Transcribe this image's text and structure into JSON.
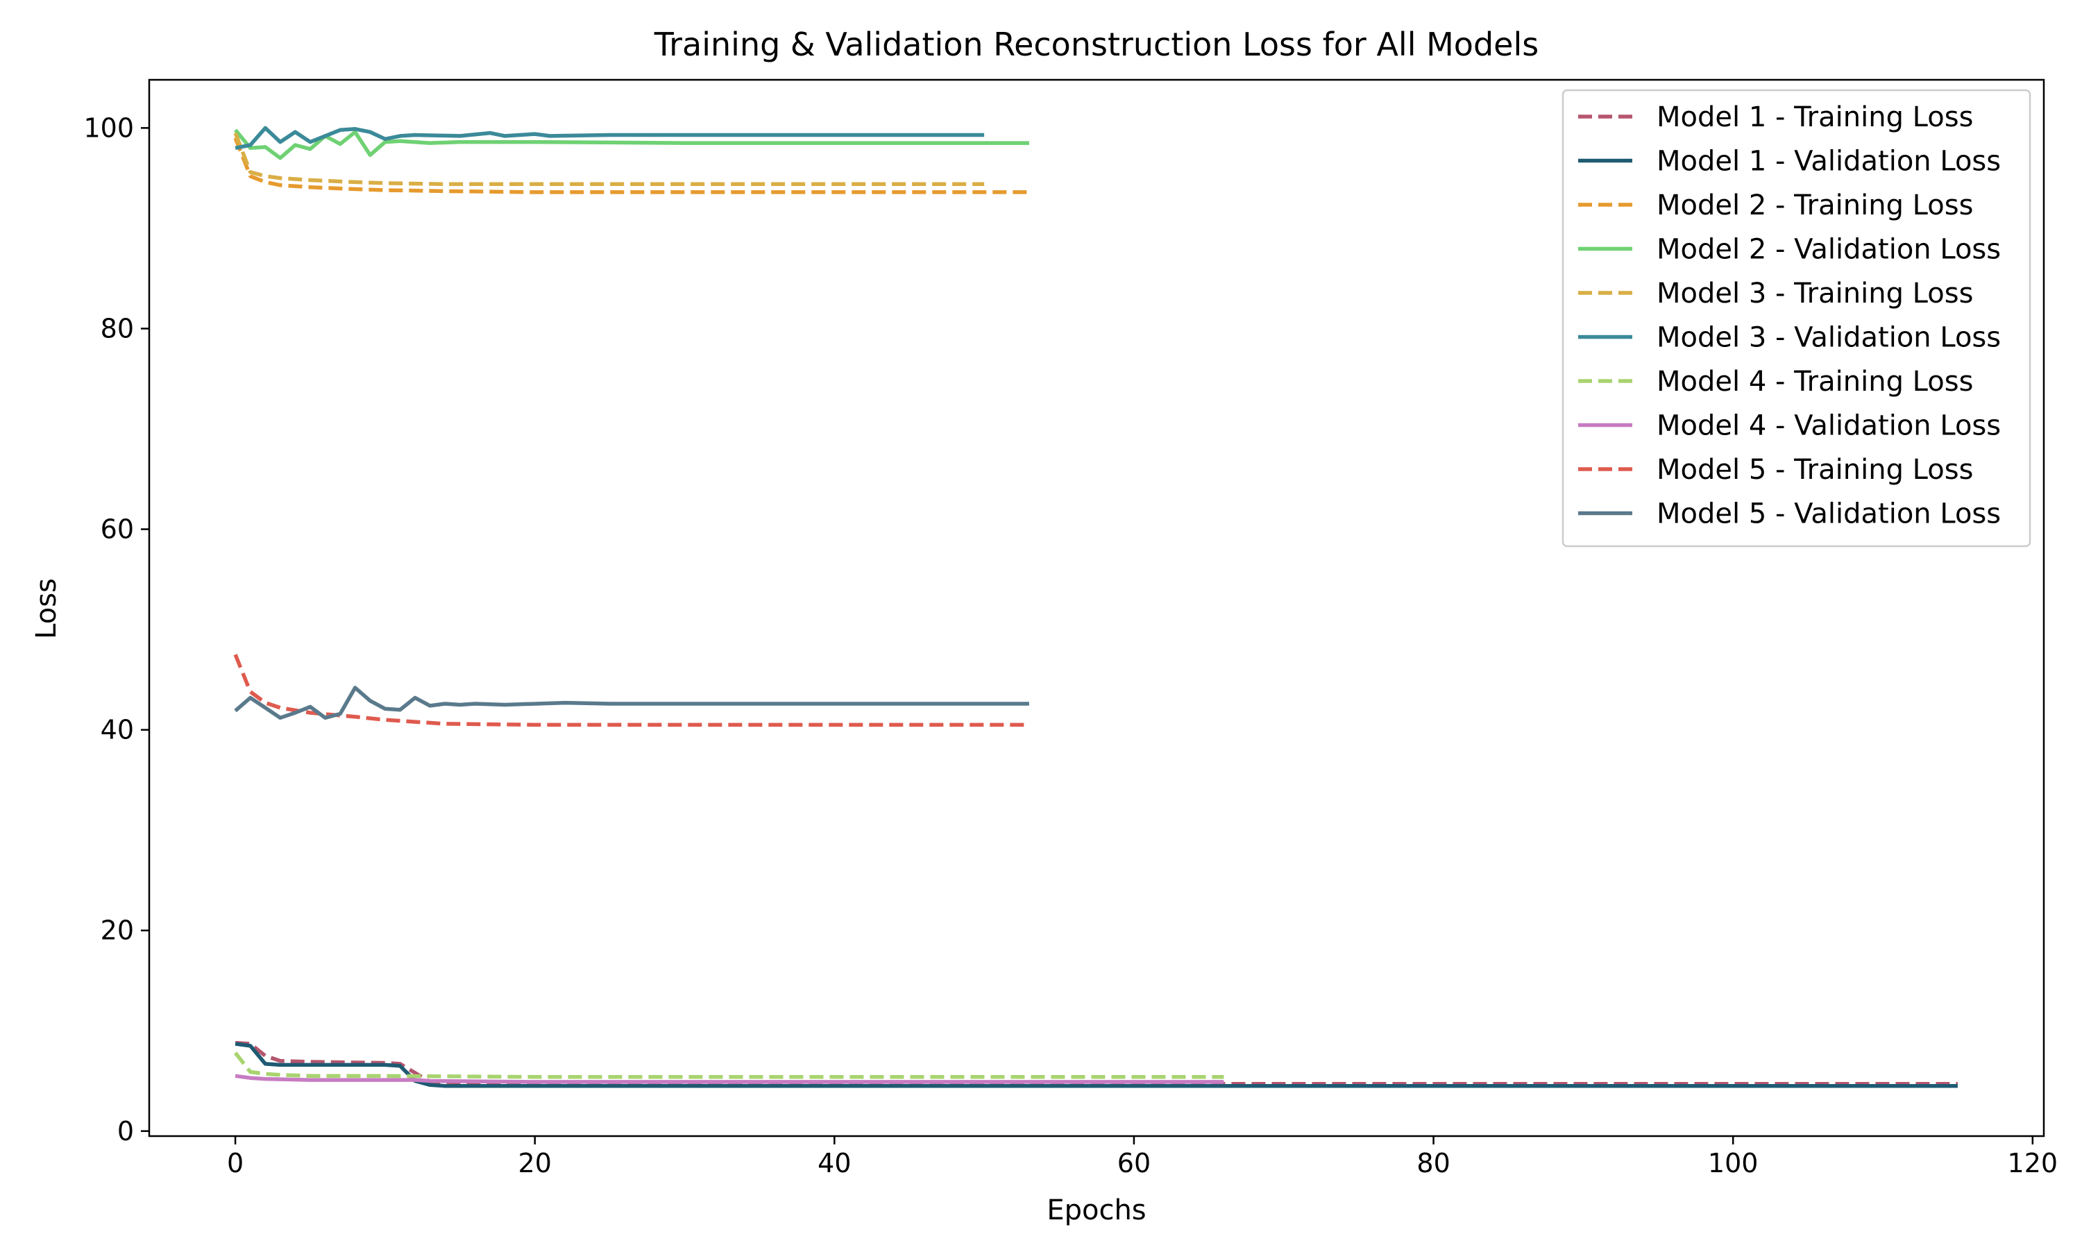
{
  "chart_data": {
    "type": "line",
    "title": "Training & Validation Reconstruction Loss for All Models",
    "xlabel": "Epochs",
    "ylabel": "Loss",
    "xlim": [
      -5.75,
      120.75
    ],
    "ylim": [
      -0.5,
      104.8
    ],
    "xticks": [
      0,
      20,
      40,
      60,
      80,
      100,
      120
    ],
    "yticks": [
      0,
      20,
      40,
      60,
      80,
      100
    ],
    "grid": false,
    "legend_position": "top-right",
    "series": [
      {
        "name": "Model 1 - Training Loss",
        "color": "#b5566e",
        "style": "dashed",
        "segments": [
          [
            0,
            8.8
          ],
          [
            1,
            8.7
          ],
          [
            2,
            7.5
          ],
          [
            3,
            7.0
          ],
          [
            5,
            6.9
          ],
          [
            10,
            6.8
          ],
          [
            11,
            6.7
          ],
          [
            12,
            5.8
          ],
          [
            13,
            4.9
          ],
          [
            20,
            4.8
          ],
          [
            60,
            4.7
          ],
          [
            115,
            4.7
          ]
        ]
      },
      {
        "name": "Model 1 - Validation Loss",
        "color": "#1f5a73",
        "style": "solid",
        "segments": [
          [
            0,
            8.7
          ],
          [
            1,
            8.5
          ],
          [
            2,
            6.7
          ],
          [
            3,
            6.6
          ],
          [
            10,
            6.6
          ],
          [
            11,
            6.5
          ],
          [
            12,
            5.0
          ],
          [
            13,
            4.6
          ],
          [
            14,
            4.5
          ],
          [
            20,
            4.5
          ],
          [
            115,
            4.5
          ]
        ]
      },
      {
        "name": "Model 2 - Training Loss",
        "color": "#e69a2e",
        "style": "dashed",
        "segments": [
          [
            0,
            99.0
          ],
          [
            1,
            95.2
          ],
          [
            2,
            94.6
          ],
          [
            3,
            94.3
          ],
          [
            5,
            94.1
          ],
          [
            8,
            93.9
          ],
          [
            10,
            93.8
          ],
          [
            14,
            93.7
          ],
          [
            20,
            93.6
          ],
          [
            53,
            93.6
          ]
        ]
      },
      {
        "name": "Model 2 - Validation Loss",
        "color": "#6fd173",
        "style": "solid",
        "segments": [
          [
            0,
            99.8
          ],
          [
            1,
            98.0
          ],
          [
            2,
            98.1
          ],
          [
            3,
            97.0
          ],
          [
            4,
            98.3
          ],
          [
            5,
            97.9
          ],
          [
            6,
            99.2
          ],
          [
            7,
            98.4
          ],
          [
            8,
            99.6
          ],
          [
            9,
            97.3
          ],
          [
            10,
            98.6
          ],
          [
            11,
            98.7
          ],
          [
            13,
            98.5
          ],
          [
            15,
            98.6
          ],
          [
            20,
            98.6
          ],
          [
            30,
            98.5
          ],
          [
            53,
            98.5
          ]
        ]
      },
      {
        "name": "Model 3 - Training Loss",
        "color": "#d9ae45",
        "style": "dashed",
        "segments": [
          [
            0,
            99.5
          ],
          [
            1,
            95.6
          ],
          [
            2,
            95.2
          ],
          [
            3,
            95.0
          ],
          [
            5,
            94.8
          ],
          [
            8,
            94.6
          ],
          [
            10,
            94.5
          ],
          [
            14,
            94.4
          ],
          [
            20,
            94.4
          ],
          [
            50,
            94.4
          ]
        ]
      },
      {
        "name": "Model 3 - Validation Loss",
        "color": "#3b8a99",
        "style": "solid",
        "segments": [
          [
            0,
            98.0
          ],
          [
            1,
            98.3
          ],
          [
            2,
            100.0
          ],
          [
            3,
            98.6
          ],
          [
            4,
            99.6
          ],
          [
            5,
            98.6
          ],
          [
            6,
            99.2
          ],
          [
            7,
            99.8
          ],
          [
            8,
            99.9
          ],
          [
            9,
            99.6
          ],
          [
            10,
            98.9
          ],
          [
            11,
            99.2
          ],
          [
            12,
            99.3
          ],
          [
            15,
            99.2
          ],
          [
            17,
            99.5
          ],
          [
            18,
            99.2
          ],
          [
            20,
            99.4
          ],
          [
            21,
            99.2
          ],
          [
            25,
            99.3
          ],
          [
            50,
            99.3
          ]
        ]
      },
      {
        "name": "Model 4 - Training Loss",
        "color": "#a8d46f",
        "style": "dashed",
        "segments": [
          [
            0,
            7.8
          ],
          [
            1,
            5.9
          ],
          [
            2,
            5.7
          ],
          [
            3,
            5.6
          ],
          [
            5,
            5.5
          ],
          [
            10,
            5.5
          ],
          [
            20,
            5.4
          ],
          [
            66,
            5.4
          ]
        ]
      },
      {
        "name": "Model 4 - Validation Loss",
        "color": "#c77cc2",
        "style": "solid",
        "segments": [
          [
            0,
            5.5
          ],
          [
            1,
            5.3
          ],
          [
            2,
            5.2
          ],
          [
            5,
            5.1
          ],
          [
            12,
            5.1
          ],
          [
            13,
            5.0
          ],
          [
            20,
            4.9
          ],
          [
            66,
            4.9
          ]
        ]
      },
      {
        "name": "Model 5 - Training Loss",
        "color": "#df5a4e",
        "style": "dashed",
        "segments": [
          [
            0,
            47.5
          ],
          [
            1,
            43.8
          ],
          [
            2,
            42.7
          ],
          [
            3,
            42.2
          ],
          [
            5,
            41.7
          ],
          [
            8,
            41.3
          ],
          [
            10,
            41.0
          ],
          [
            12,
            40.8
          ],
          [
            14,
            40.6
          ],
          [
            20,
            40.5
          ],
          [
            53,
            40.5
          ]
        ]
      },
      {
        "name": "Model 5 - Validation Loss",
        "color": "#5a7a8c",
        "style": "solid",
        "segments": [
          [
            0,
            41.9
          ],
          [
            1,
            43.2
          ],
          [
            2,
            42.2
          ],
          [
            3,
            41.2
          ],
          [
            4,
            41.7
          ],
          [
            5,
            42.3
          ],
          [
            6,
            41.2
          ],
          [
            7,
            41.6
          ],
          [
            8,
            44.2
          ],
          [
            9,
            42.9
          ],
          [
            10,
            42.1
          ],
          [
            11,
            42.0
          ],
          [
            12,
            43.2
          ],
          [
            13,
            42.4
          ],
          [
            14,
            42.6
          ],
          [
            15,
            42.5
          ],
          [
            16,
            42.6
          ],
          [
            18,
            42.5
          ],
          [
            22,
            42.7
          ],
          [
            25,
            42.6
          ],
          [
            53,
            42.6
          ]
        ]
      }
    ]
  }
}
